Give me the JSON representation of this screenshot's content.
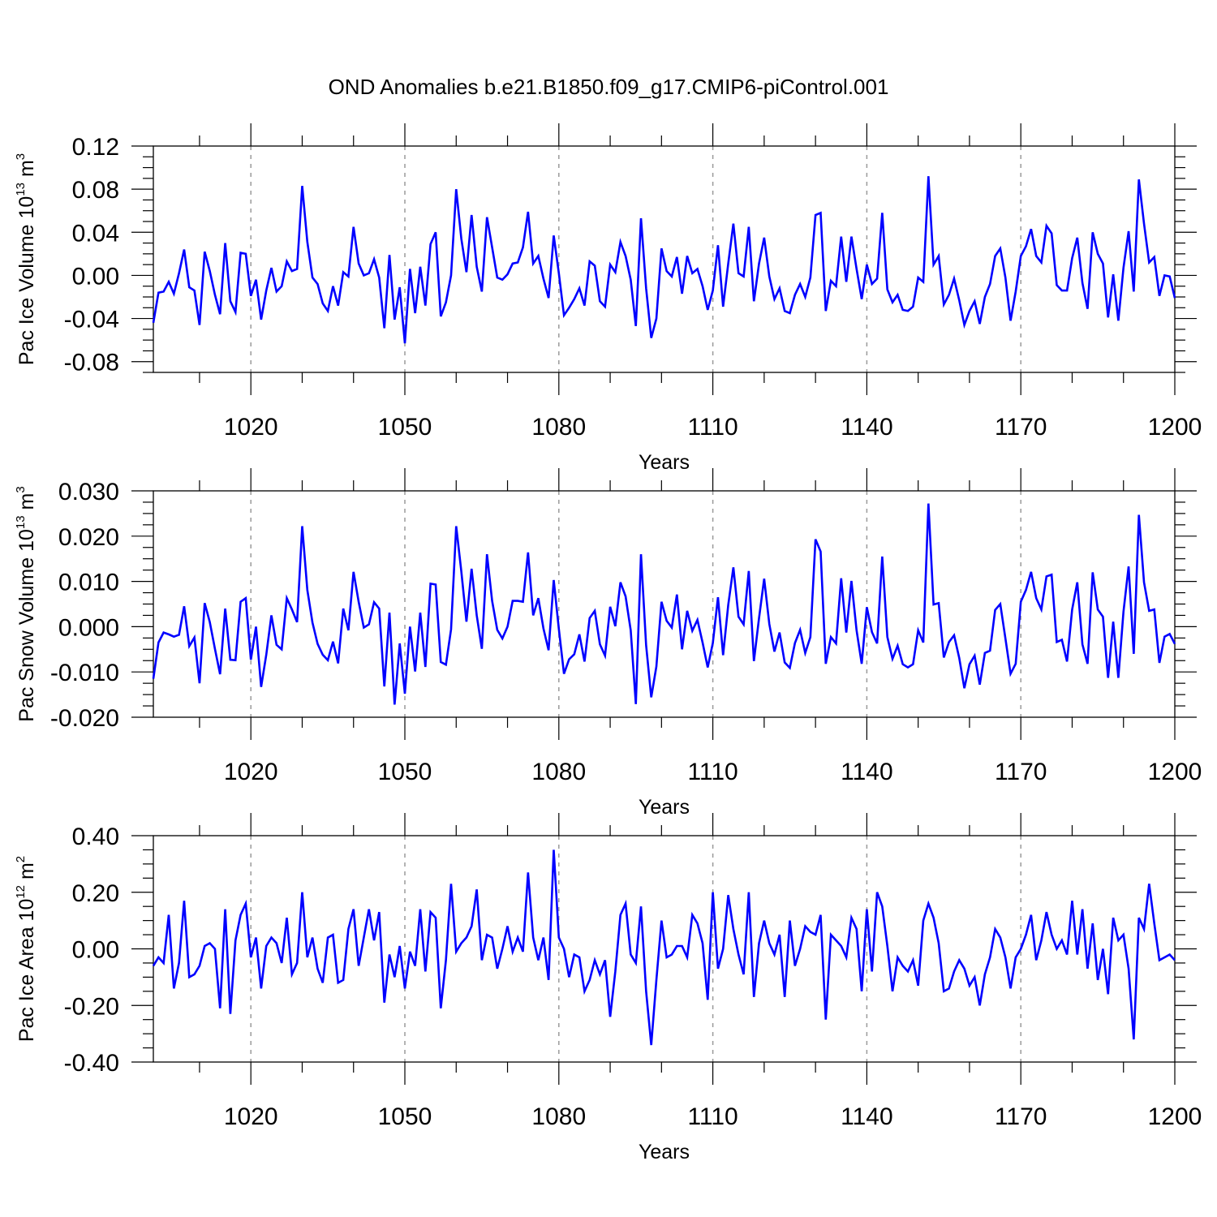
{
  "figure": {
    "title": "OND Anomalies b.e21.B1850.f09_g17.CMIP6-piControl.001",
    "line_color": "#0000ff",
    "grid_color": "#9a9a9a"
  },
  "chart_data": [
    {
      "type": "line",
      "title": "OND Anomalies b.e21.B1850.f09_g17.CMIP6-piControl.001",
      "ylabel": {
        "text": "Pac Ice Volume 10",
        "exp": "13",
        "unit": "m",
        "unit_exp": "3"
      },
      "xlabel": "Years",
      "xlim": [
        1001,
        1200
      ],
      "ylim": [
        -0.09,
        0.12
      ],
      "xticks": [
        1020,
        1050,
        1080,
        1110,
        1140,
        1170,
        1200
      ],
      "xtick_labels": [
        "1020",
        "1050",
        "1080",
        "1110",
        "1140",
        "1170",
        "1200"
      ],
      "yticks": [
        0.12,
        0.08,
        0.04,
        0.0,
        -0.04,
        -0.08
      ],
      "ytick_labels": [
        "0.12",
        "0.08",
        "0.04",
        "0.00",
        "-0.04",
        "-0.08"
      ],
      "grid_x": true,
      "series": [
        {
          "name": "Pac Ice Volume",
          "color": "#0000ff",
          "values": [
            -0.044,
            -0.016,
            -0.015,
            -0.006,
            -0.017,
            0.002,
            0.024,
            -0.011,
            -0.014,
            -0.046,
            0.022,
            0.004,
            -0.018,
            -0.036,
            0.03,
            -0.024,
            -0.034,
            0.021,
            0.02,
            -0.019,
            -0.004,
            -0.041,
            -0.014,
            0.007,
            -0.015,
            -0.01,
            0.013,
            0.004,
            0.006,
            0.083,
            0.031,
            -0.002,
            -0.008,
            -0.026,
            -0.033,
            -0.01,
            -0.028,
            0.003,
            -0.001,
            0.045,
            0.011,
            0.0,
            0.002,
            0.015,
            -0.002,
            -0.049,
            0.019,
            -0.041,
            -0.011,
            -0.063,
            0.006,
            -0.035,
            0.008,
            -0.028,
            0.029,
            0.04,
            -0.038,
            -0.025,
            0.0,
            0.08,
            0.034,
            0.003,
            0.056,
            0.008,
            -0.015,
            0.054,
            0.026,
            -0.002,
            -0.004,
            0.001,
            0.011,
            0.012,
            0.026,
            0.059,
            0.011,
            0.018,
            -0.003,
            -0.021,
            0.037,
            0.002,
            -0.037,
            -0.03,
            -0.022,
            -0.012,
            -0.028,
            0.013,
            0.009,
            -0.024,
            -0.029,
            0.01,
            0.003,
            0.031,
            0.018,
            -0.004,
            -0.047,
            0.053,
            -0.012,
            -0.058,
            -0.04,
            0.025,
            0.004,
            -0.001,
            0.017,
            -0.017,
            0.018,
            0.002,
            0.006,
            -0.01,
            -0.032,
            -0.014,
            0.028,
            -0.029,
            0.011,
            0.048,
            0.002,
            -0.001,
            0.045,
            -0.024,
            0.011,
            0.035,
            -0.001,
            -0.022,
            -0.012,
            -0.033,
            -0.035,
            -0.018,
            -0.008,
            -0.02,
            -0.002,
            0.056,
            0.058,
            -0.033,
            -0.005,
            -0.01,
            0.036,
            -0.006,
            0.036,
            0.006,
            -0.022,
            0.01,
            -0.008,
            -0.003,
            0.058,
            -0.013,
            -0.025,
            -0.018,
            -0.032,
            -0.033,
            -0.029,
            -0.002,
            -0.006,
            0.092,
            0.01,
            0.018,
            -0.027,
            -0.018,
            -0.003,
            -0.023,
            -0.046,
            -0.033,
            -0.024,
            -0.045,
            -0.02,
            -0.008,
            0.018,
            0.025,
            -0.002,
            -0.042,
            -0.015,
            0.018,
            0.027,
            0.043,
            0.018,
            0.012,
            0.046,
            0.039,
            -0.009,
            -0.014,
            -0.014,
            0.016,
            0.035,
            -0.007,
            -0.031,
            0.04,
            0.02,
            0.011,
            -0.039,
            0.001,
            -0.042,
            0.007,
            0.041,
            -0.015,
            0.089,
            0.048,
            0.012,
            0.017,
            -0.019,
            0.0,
            -0.001,
            -0.021
          ]
        }
      ]
    },
    {
      "type": "line",
      "ylabel": {
        "text": "Pac Snow Volume 10",
        "exp": "13",
        "unit": "m",
        "unit_exp": "3"
      },
      "xlabel": "Years",
      "xlim": [
        1001,
        1200
      ],
      "ylim": [
        -0.02,
        0.03
      ],
      "xticks": [
        1020,
        1050,
        1080,
        1110,
        1140,
        1170,
        1200
      ],
      "xtick_labels": [
        "1020",
        "1050",
        "1080",
        "1110",
        "1140",
        "1170",
        "1200"
      ],
      "yticks": [
        0.03,
        0.02,
        0.01,
        0.0,
        -0.01,
        -0.02
      ],
      "ytick_labels": [
        "0.030",
        "0.020",
        "0.010",
        "0.000",
        "-0.010",
        "-0.020"
      ],
      "grid_x": true,
      "series": [
        {
          "name": "Pac Snow Volume",
          "color": "#0000ff",
          "values": [
            -0.0115,
            -0.0035,
            -0.0013,
            -0.0017,
            -0.0022,
            -0.0018,
            0.0045,
            -0.0043,
            -0.0024,
            -0.0125,
            0.0052,
            0.001,
            -0.0049,
            -0.0105,
            0.004,
            -0.0073,
            -0.0074,
            0.0055,
            0.0063,
            -0.0073,
            0.0,
            -0.0133,
            -0.0062,
            0.0025,
            -0.004,
            -0.005,
            0.0063,
            0.0038,
            0.001,
            0.0222,
            0.0081,
            0.0009,
            -0.0038,
            -0.0062,
            -0.0074,
            -0.0033,
            -0.0081,
            0.004,
            -0.0008,
            0.0121,
            0.0055,
            -0.0002,
            0.0005,
            0.0054,
            0.004,
            -0.0132,
            0.0031,
            -0.0172,
            -0.0037,
            -0.0148,
            0.0,
            -0.0099,
            0.0031,
            -0.0089,
            0.0095,
            0.0093,
            -0.0078,
            -0.0084,
            -0.0006,
            0.0222,
            0.0122,
            0.0011,
            0.0128,
            0.0025,
            -0.0049,
            0.016,
            0.0057,
            -0.0007,
            -0.0026,
            0.0,
            0.0057,
            0.0057,
            0.0055,
            0.0164,
            0.0025,
            0.0063,
            -0.0004,
            -0.0052,
            0.0103,
            -0.0005,
            -0.0104,
            -0.0072,
            -0.0061,
            -0.0017,
            -0.0077,
            0.0019,
            0.0035,
            -0.0039,
            -0.0064,
            0.0044,
            0.0001,
            0.0098,
            0.0067,
            -0.0008,
            -0.0171,
            0.016,
            -0.0041,
            -0.0156,
            -0.0088,
            0.0055,
            0.0013,
            -0.0002,
            0.0071,
            -0.005,
            0.0035,
            -0.0009,
            0.0015,
            -0.0035,
            -0.009,
            -0.0036,
            0.0065,
            -0.0063,
            0.0048,
            0.0131,
            0.0022,
            0.0005,
            0.0123,
            -0.0076,
            0.0019,
            0.0106,
            0.0006,
            -0.0055,
            -0.0013,
            -0.0079,
            -0.0091,
            -0.0036,
            -0.0007,
            -0.0058,
            -0.0023,
            0.0193,
            0.0166,
            -0.0082,
            -0.0023,
            -0.0037,
            0.0107,
            -0.0013,
            0.0101,
            -0.0008,
            -0.0082,
            0.0043,
            -0.0012,
            -0.0037,
            0.0155,
            -0.0023,
            -0.0071,
            -0.0042,
            -0.0083,
            -0.009,
            -0.0083,
            -0.0008,
            -0.0035,
            0.0272,
            0.0049,
            0.0052,
            -0.0068,
            -0.0034,
            -0.0019,
            -0.0069,
            -0.0136,
            -0.0083,
            -0.0064,
            -0.0128,
            -0.0058,
            -0.0053,
            0.0037,
            0.005,
            -0.0026,
            -0.0104,
            -0.0082,
            0.0055,
            0.0081,
            0.0121,
            0.0063,
            0.0038,
            0.0111,
            0.0115,
            -0.0034,
            -0.0029,
            -0.0077,
            0.0038,
            0.0098,
            -0.0039,
            -0.0082,
            0.012,
            0.0038,
            0.0022,
            -0.0113,
            0.0011,
            -0.0113,
            0.0033,
            0.0133,
            -0.006,
            0.0247,
            0.0098,
            0.0035,
            0.0038,
            -0.008,
            -0.0022,
            -0.0016,
            -0.0038
          ]
        }
      ]
    },
    {
      "type": "line",
      "ylabel": {
        "text": "Pac Ice Area 10",
        "exp": "12",
        "unit": "m",
        "unit_exp": "2"
      },
      "xlabel": "Years",
      "xlim": [
        1001,
        1200
      ],
      "ylim": [
        -0.4,
        0.4
      ],
      "xticks": [
        1020,
        1050,
        1080,
        1110,
        1140,
        1170,
        1200
      ],
      "xtick_labels": [
        "1020",
        "1050",
        "1080",
        "1110",
        "1140",
        "1170",
        "1200"
      ],
      "yticks": [
        0.4,
        0.2,
        0.0,
        -0.2,
        -0.4
      ],
      "ytick_labels": [
        "0.40",
        "0.20",
        "0.00",
        "-0.20",
        "-0.40"
      ],
      "grid_x": true,
      "series": [
        {
          "name": "Pac Ice Area",
          "color": "#0000ff",
          "values": [
            -0.06,
            -0.03,
            -0.05,
            0.12,
            -0.14,
            -0.05,
            0.17,
            -0.1,
            -0.09,
            -0.06,
            0.01,
            0.02,
            0.0,
            -0.21,
            0.14,
            -0.23,
            0.03,
            0.12,
            0.16,
            -0.03,
            0.04,
            -0.14,
            0.01,
            0.04,
            0.02,
            -0.05,
            0.11,
            -0.09,
            -0.05,
            0.2,
            -0.03,
            0.04,
            -0.07,
            -0.12,
            0.04,
            0.05,
            -0.12,
            -0.11,
            0.07,
            0.14,
            -0.06,
            0.04,
            0.14,
            0.03,
            0.13,
            -0.19,
            -0.02,
            -0.1,
            0.01,
            -0.14,
            -0.01,
            -0.06,
            0.14,
            -0.08,
            0.13,
            0.11,
            -0.21,
            -0.04,
            0.23,
            -0.01,
            0.02,
            0.04,
            0.08,
            0.21,
            -0.04,
            0.05,
            0.04,
            -0.07,
            0.0,
            0.08,
            -0.01,
            0.04,
            -0.01,
            0.27,
            0.04,
            -0.04,
            0.04,
            -0.11,
            0.35,
            0.04,
            0.0,
            -0.1,
            -0.02,
            -0.03,
            -0.15,
            -0.11,
            -0.04,
            -0.09,
            -0.04,
            -0.24,
            -0.08,
            0.12,
            0.16,
            -0.02,
            -0.05,
            0.15,
            -0.15,
            -0.34,
            -0.11,
            0.1,
            -0.03,
            -0.02,
            0.01,
            0.01,
            -0.03,
            0.12,
            0.09,
            0.02,
            -0.18,
            0.2,
            -0.07,
            0.0,
            0.19,
            0.07,
            -0.02,
            -0.09,
            0.2,
            -0.17,
            0.02,
            0.1,
            0.02,
            -0.02,
            0.05,
            -0.17,
            0.1,
            -0.06,
            0.0,
            0.08,
            0.06,
            0.05,
            0.12,
            -0.25,
            0.05,
            0.03,
            0.01,
            -0.03,
            0.11,
            0.07,
            -0.15,
            0.14,
            -0.08,
            0.2,
            0.15,
            0.01,
            -0.15,
            -0.03,
            -0.06,
            -0.08,
            -0.04,
            -0.13,
            0.1,
            0.16,
            0.11,
            0.02,
            -0.15,
            -0.14,
            -0.08,
            -0.04,
            -0.07,
            -0.13,
            -0.1,
            -0.2,
            -0.09,
            -0.03,
            0.07,
            0.04,
            -0.03,
            -0.14,
            -0.03,
            0.0,
            0.05,
            0.12,
            -0.04,
            0.03,
            0.13,
            0.05,
            0.0,
            0.03,
            -0.02,
            0.17,
            -0.02,
            0.14,
            -0.07,
            0.09,
            -0.11,
            0.0,
            -0.16,
            0.11,
            0.03,
            0.05,
            -0.07,
            -0.32,
            0.11,
            0.07,
            0.23,
            0.09,
            -0.04,
            -0.03,
            -0.02,
            -0.04
          ]
        }
      ]
    }
  ]
}
